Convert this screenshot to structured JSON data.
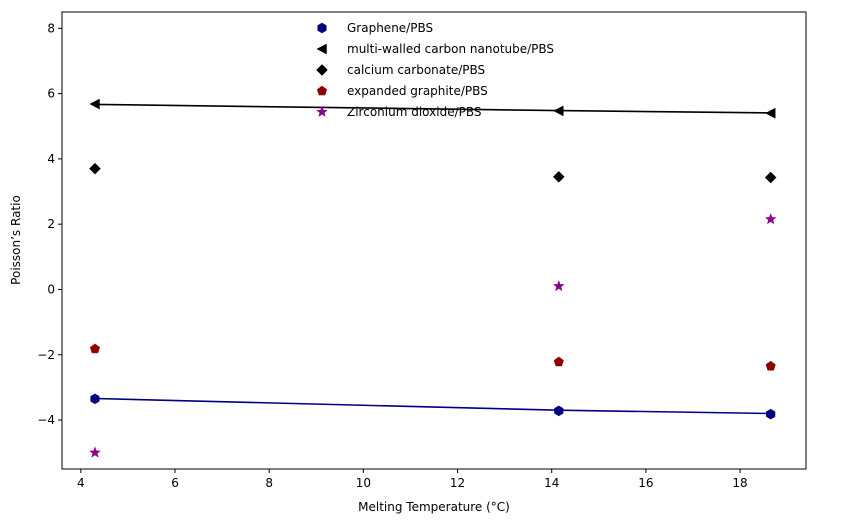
{
  "chart_data": {
    "type": "scatter",
    "title": "",
    "xlabel": "Melting Temperature (°C)",
    "ylabel": "Poisson’s Ratio",
    "xlim": [
      3.6,
      19.4
    ],
    "ylim": [
      -5.5,
      8.5
    ],
    "xticks": [
      4,
      6,
      8,
      10,
      12,
      14,
      16,
      18
    ],
    "yticks": [
      -4,
      -2,
      0,
      2,
      4,
      6,
      8
    ],
    "xtick_labels": [
      "4",
      "6",
      "8",
      "10",
      "12",
      "14",
      "16",
      "18"
    ],
    "ytick_labels": [
      "−4",
      "−2",
      "0",
      "2",
      "4",
      "6",
      "8"
    ],
    "grid": false,
    "legend_position": "top-center",
    "x": [
      4.3,
      14.15,
      18.65
    ],
    "series": [
      {
        "name": "Graphene/PBS",
        "marker": "hexagon",
        "color": "#000080",
        "values": [
          -3.35,
          -3.72,
          -3.82
        ],
        "trend_line": [
          -3.34,
          -3.7,
          -3.8
        ]
      },
      {
        "name": "multi-walled carbon nanotube/PBS",
        "marker": "triangle-left",
        "color": "#000000",
        "values": [
          5.68,
          5.47,
          5.4
        ],
        "trend_line": [
          5.67,
          5.48,
          5.41
        ]
      },
      {
        "name": "calcium carbonate/PBS",
        "marker": "diamond",
        "color": "#000000",
        "values": [
          3.7,
          3.45,
          3.43
        ]
      },
      {
        "name": "expanded graphite/PBS",
        "marker": "pentagon",
        "color": "#8b0000",
        "values": [
          -1.82,
          -2.22,
          -2.35
        ]
      },
      {
        "name": "Zirconium dioxide/PBS",
        "marker": "star",
        "color": "#8b008b",
        "values": [
          -5.0,
          0.1,
          2.15
        ]
      }
    ]
  }
}
